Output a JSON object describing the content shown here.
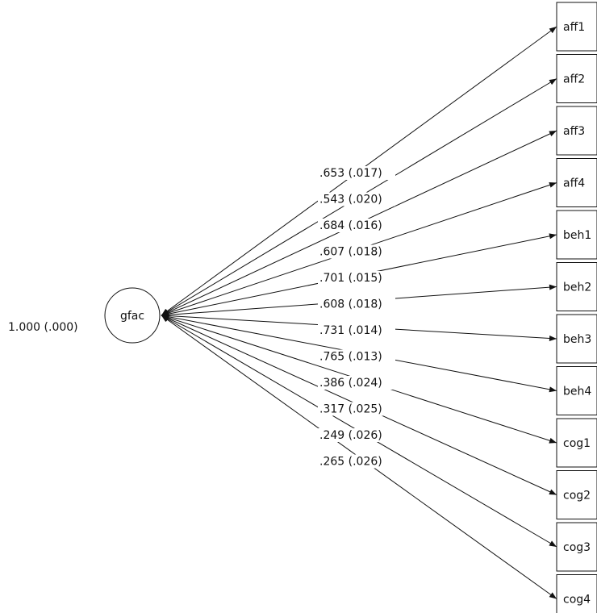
{
  "factor": {
    "name": "gfac",
    "variance_label": "1.000 (.000)"
  },
  "indicators": [
    {
      "name": "aff1",
      "loading": ".653 (.017)"
    },
    {
      "name": "aff2",
      "loading": ".543 (.020)"
    },
    {
      "name": "aff3",
      "loading": ".684 (.016)"
    },
    {
      "name": "aff4",
      "loading": ".607 (.018)"
    },
    {
      "name": "beh1",
      "loading": ".701 (.015)"
    },
    {
      "name": "beh2",
      "loading": ".608 (.018)"
    },
    {
      "name": "beh3",
      "loading": ".731 (.014)"
    },
    {
      "name": "beh4",
      "loading": ".765 (.013)"
    },
    {
      "name": "cog1",
      "loading": ".386 (.024)"
    },
    {
      "name": "cog2",
      "loading": ".317 (.025)"
    },
    {
      "name": "cog3",
      "loading": ".249 (.026)"
    },
    {
      "name": "cog4",
      "loading": ".265 (.026)"
    }
  ]
}
